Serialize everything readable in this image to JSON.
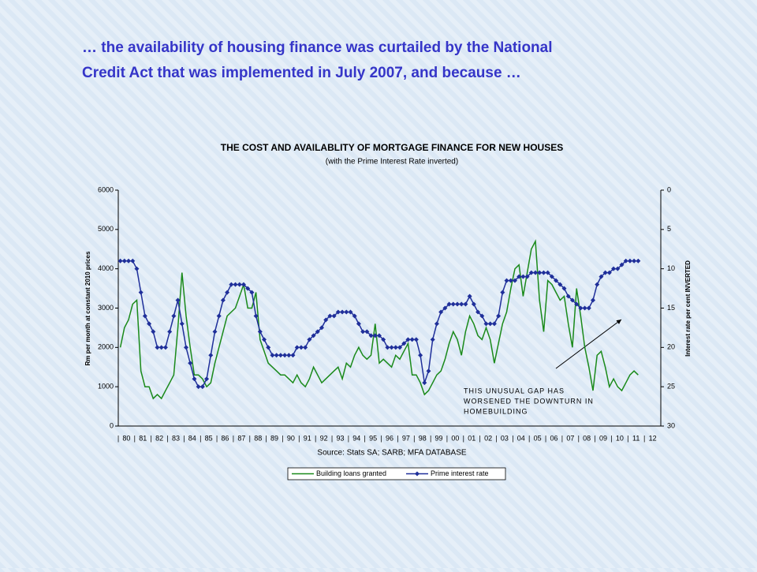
{
  "heading": [
    "… the availability of housing finance was curtailed by the National",
    "Credit Act that was implemented in July 2007, and because …"
  ],
  "chart_data": {
    "type": "line",
    "title": "THE COST AND AVAILABLITY OF MORTGAGE FINANCE FOR NEW HOUSES",
    "subtitle": "(with the Prime Interest Rate inverted)",
    "ylabel": "Rm per month at constant 2010 prices",
    "y2label": "Interest rate per cent INVERTED",
    "source": "Source: Stats SA; SARB; MFA DATABASE",
    "annotation": [
      "THIS UNUSUAL GAP HAS",
      "WORSENED THE DOWNTURN IN",
      "HOMEBUILDING"
    ],
    "categories": [
      null,
      "80",
      null,
      null,
      null,
      "81",
      null,
      null,
      null,
      "82",
      null,
      null,
      null,
      "83",
      null,
      null,
      null,
      "84",
      null,
      null,
      null,
      "85",
      null,
      null,
      null,
      "86",
      null,
      null,
      null,
      "87",
      null,
      null,
      null,
      "88",
      null,
      null,
      null,
      "89",
      null,
      null,
      null,
      "90",
      null,
      null,
      null,
      "91",
      null,
      null,
      null,
      "92",
      null,
      null,
      null,
      "93",
      null,
      null,
      null,
      "94",
      null,
      null,
      null,
      "95",
      null,
      null,
      null,
      "96",
      null,
      null,
      null,
      "97",
      null,
      null,
      null,
      "98",
      null,
      null,
      null,
      "99",
      null,
      null,
      null,
      "00",
      null,
      null,
      null,
      "01",
      null,
      null,
      null,
      "02",
      null,
      null,
      null,
      "03",
      null,
      null,
      null,
      "04",
      null,
      null,
      null,
      "05",
      null,
      null,
      null,
      "06",
      null,
      null,
      null,
      "07",
      null,
      null,
      null,
      "08",
      null,
      null,
      null,
      "09",
      null,
      null,
      null,
      "10",
      null,
      null,
      null,
      "11",
      null,
      null,
      null,
      "12",
      null,
      null
    ],
    "series": [
      {
        "name": "Building loans granted",
        "color": "#1a8a1a",
        "axis": "y",
        "marker": false,
        "values": [
          2000,
          2500,
          2700,
          3100,
          3200,
          1400,
          1000,
          1000,
          700,
          800,
          700,
          900,
          1100,
          1300,
          2500,
          3900,
          2800,
          2000,
          1300,
          1300,
          1200,
          1000,
          1100,
          1600,
          2000,
          2400,
          2800,
          2900,
          3000,
          3300,
          3600,
          3000,
          3000,
          3400,
          2200,
          1900,
          1600,
          1500,
          1400,
          1300,
          1300,
          1200,
          1100,
          1300,
          1100,
          1000,
          1200,
          1500,
          1300,
          1100,
          1200,
          1300,
          1400,
          1500,
          1200,
          1600,
          1500,
          1800,
          2000,
          1800,
          1700,
          1800,
          2600,
          1600,
          1700,
          1600,
          1500,
          1800,
          1700,
          1900,
          2100,
          1300,
          1300,
          1100,
          800,
          900,
          1100,
          1300,
          1400,
          1700,
          2100,
          2400,
          2200,
          1800,
          2400,
          2800,
          2600,
          2300,
          2200,
          2500,
          2200,
          1600,
          2100,
          2600,
          2900,
          3500,
          4000,
          4100,
          3300,
          3900,
          4500,
          4700,
          3200,
          2400,
          3700,
          3600,
          3400,
          3200,
          3300,
          2600,
          2000,
          3500,
          2800,
          2000,
          1500,
          900,
          1800,
          1900,
          1500,
          1000,
          1200,
          1000,
          900,
          1100,
          1300,
          1400,
          1300,
          null,
          null,
          null,
          null,
          null
        ]
      },
      {
        "name": "Prime interest rate",
        "color": "#1f2f9a",
        "axis": "y2",
        "marker": true,
        "values": [
          9,
          9,
          9,
          9,
          10,
          13,
          16,
          17,
          18,
          20,
          20,
          20,
          18,
          16,
          14,
          17,
          20,
          22,
          24,
          25,
          25,
          24,
          21,
          18,
          16,
          14,
          13,
          12,
          12,
          12,
          12,
          12.5,
          13,
          16,
          18,
          19,
          20,
          21,
          21,
          21,
          21,
          21,
          21,
          20,
          20,
          20,
          19,
          18.5,
          18,
          17.5,
          16.5,
          16,
          16,
          15.5,
          15.5,
          15.5,
          15.5,
          16,
          17,
          18,
          18,
          18.5,
          18.5,
          18.5,
          19,
          20,
          20,
          20,
          20,
          19.5,
          19,
          19,
          19,
          21,
          24.5,
          23,
          19,
          17,
          15.5,
          15,
          14.5,
          14.5,
          14.5,
          14.5,
          14.5,
          13.5,
          14.5,
          15.5,
          16,
          17,
          17,
          17,
          16,
          13,
          11.5,
          11.5,
          11.5,
          11,
          11,
          11,
          10.5,
          10.5,
          10.5,
          10.5,
          10.5,
          11,
          11.5,
          12,
          12.5,
          13.5,
          14,
          14.5,
          15,
          15,
          15,
          14,
          12,
          11,
          10.5,
          10.5,
          10,
          10,
          9.5,
          9,
          9,
          9,
          9,
          null,
          null,
          null,
          null,
          null
        ]
      }
    ],
    "ylim": [
      0,
      6000
    ],
    "yticks": [
      0,
      1000,
      2000,
      3000,
      4000,
      5000,
      6000
    ],
    "y2lim": [
      0,
      30
    ],
    "y2ticks": [
      0,
      5,
      10,
      15,
      20,
      25,
      30
    ],
    "y2_inverted": true,
    "legend": "bottom"
  }
}
